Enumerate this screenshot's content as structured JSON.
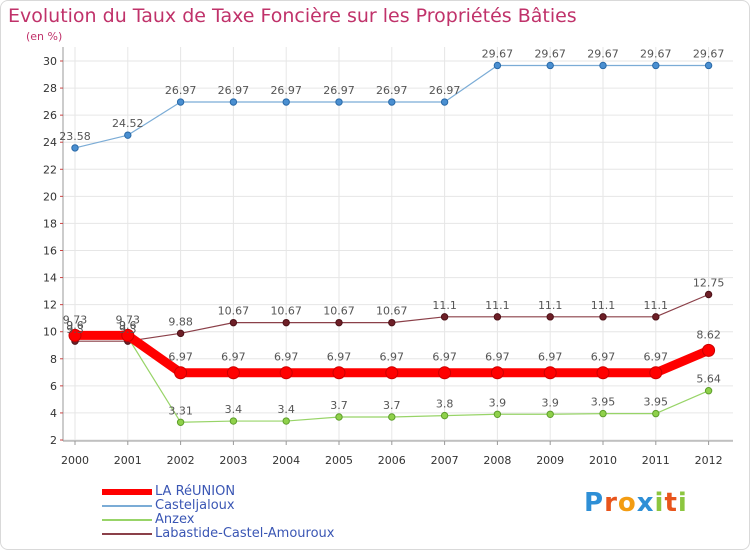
{
  "title": "Evolution du Taux de Taxe Foncière sur les Propriétés Bâties",
  "subtitle": "(en %)",
  "logo": [
    "P",
    "r",
    "o",
    "x",
    "i",
    "t",
    "i"
  ],
  "chart_data": {
    "type": "line",
    "title": "Evolution du Taux de Taxe Foncière sur les Propriétés Bâties",
    "ylabel": "(en %)",
    "xlabel": "",
    "ylim": [
      2,
      30
    ],
    "yticks": [
      2,
      4,
      6,
      8,
      10,
      12,
      14,
      16,
      18,
      20,
      22,
      24,
      26,
      28,
      30
    ],
    "grid": true,
    "legend_position": "bottom-left",
    "categories": [
      "2000",
      "2001",
      "2002",
      "2003",
      "2004",
      "2005",
      "2006",
      "2007",
      "2008",
      "2009",
      "2010",
      "2011",
      "2012"
    ],
    "series": [
      {
        "name": "LA RéUNION",
        "color": "#ff0000",
        "values": [
          9.73,
          9.73,
          6.97,
          6.97,
          6.97,
          6.97,
          6.97,
          6.97,
          6.97,
          6.97,
          6.97,
          6.97,
          8.62
        ],
        "labels": [
          "9.73",
          "9.73",
          "6.97",
          "6.97",
          "6.97",
          "6.97",
          "6.97",
          "6.97",
          "6.97",
          "6.97",
          "6.97",
          "6.97",
          "8.62"
        ]
      },
      {
        "name": "Casteljaloux",
        "color": "#7bacd6",
        "values": [
          23.58,
          24.52,
          26.97,
          26.97,
          26.97,
          26.97,
          26.97,
          26.97,
          29.67,
          29.67,
          29.67,
          29.67,
          29.67
        ],
        "labels": [
          "23.58",
          "24.52",
          "26.97",
          "26.97",
          "26.97",
          "26.97",
          "26.97",
          "26.97",
          "29.67",
          "29.67",
          "29.67",
          "29.67",
          "29.67"
        ]
      },
      {
        "name": "Anzex",
        "color": "#98d468",
        "values": [
          9.6,
          9.6,
          3.31,
          3.4,
          3.4,
          3.7,
          3.7,
          3.8,
          3.9,
          3.9,
          3.95,
          3.95,
          5.64
        ],
        "labels": [
          "9.6",
          "9.6",
          "3.31",
          "3.4",
          "3.4",
          "3.7",
          "3.7",
          "3.8",
          "3.9",
          "3.9",
          "3.95",
          "3.95",
          "5.64"
        ]
      },
      {
        "name": "Labastide-Castel-Amouroux",
        "color": "#8b4049",
        "values": [
          9.3,
          9.3,
          9.88,
          10.67,
          10.67,
          10.67,
          10.67,
          11.1,
          11.1,
          11.1,
          11.1,
          11.1,
          12.75
        ],
        "labels": [
          "9.3",
          "9.3",
          "9.88",
          "10.67",
          "10.67",
          "10.67",
          "10.67",
          "11.1",
          "11.1",
          "11.1",
          "11.1",
          "11.1",
          "12.75"
        ]
      }
    ]
  }
}
